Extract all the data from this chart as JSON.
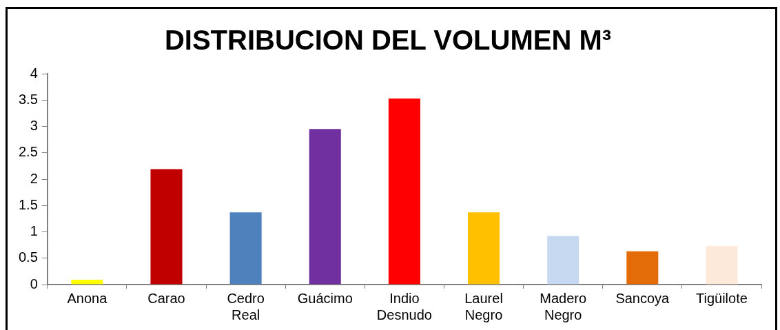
{
  "chart_data": {
    "type": "bar",
    "title": "DISTRIBUCION DEL VOLUMEN M³",
    "categories": [
      "Anona",
      "Carao",
      "Cedro Real",
      "Guácimo",
      "Indio Desnudo",
      "Laurel Negro",
      "Madero Negro",
      "Sancoya",
      "Tigüilote"
    ],
    "values": [
      0.09,
      2.19,
      1.37,
      2.95,
      3.53,
      1.37,
      0.92,
      0.63,
      0.73
    ],
    "colors": [
      "#ffff00",
      "#c00000",
      "#4f81bd",
      "#7030a0",
      "#ff0000",
      "#ffc000",
      "#c6d9f1",
      "#e36c09",
      "#fde9d9"
    ],
    "ylim": [
      0,
      4
    ],
    "yticks": [
      0,
      0.5,
      1,
      1.5,
      2,
      2.5,
      3,
      3.5,
      4
    ],
    "grid": false,
    "legend": false
  }
}
